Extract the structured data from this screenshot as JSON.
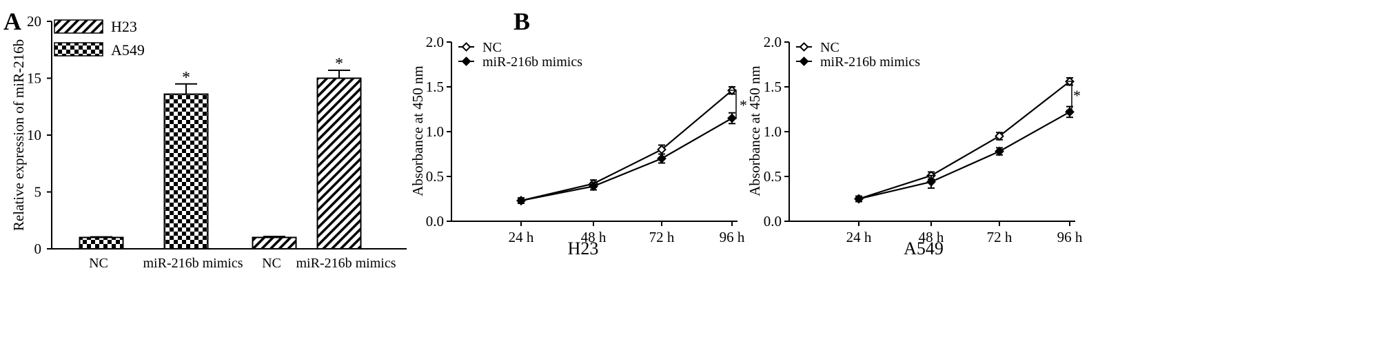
{
  "panel_labels": {
    "a": "A",
    "b": "B"
  },
  "chart_data": [
    {
      "type": "bar",
      "panel": "A",
      "ylabel": "Relative expression of miR-216b",
      "ylim": [
        0,
        20
      ],
      "yticks": [
        "0",
        "5",
        "10",
        "15",
        "20"
      ],
      "categories": [
        "NC",
        "miR-216b mimics",
        "NC",
        "miR-216b mimics"
      ],
      "groups": [
        {
          "cell_line": "A549",
          "pattern": "checkered",
          "bars": [
            {
              "category": "NC",
              "value": 1.0,
              "error": 0.05,
              "significant": false
            },
            {
              "category": "miR-216b mimics",
              "value": 13.6,
              "error": 0.9,
              "significant": true
            }
          ]
        },
        {
          "cell_line": "H23",
          "pattern": "hatched",
          "bars": [
            {
              "category": "NC",
              "value": 1.0,
              "error": 0.08,
              "significant": false
            },
            {
              "category": "miR-216b mimics",
              "value": 15.0,
              "error": 0.7,
              "significant": true
            }
          ]
        }
      ],
      "legend": [
        {
          "name": "H23",
          "pattern": "hatched"
        },
        {
          "name": "A549",
          "pattern": "checkered"
        }
      ],
      "legend_position": "top-left",
      "significance_symbol": "*"
    },
    {
      "type": "line",
      "panel": "B",
      "xlabel": "H23",
      "ylabel": "Absorbance at 450 nm",
      "categories": [
        "24 h",
        "48 h",
        "72 h",
        "96 h"
      ],
      "ylim": [
        0,
        2.0
      ],
      "yticks": [
        "0.0",
        "0.5",
        "1.0",
        "1.5",
        "2.0"
      ],
      "series": [
        {
          "name": "NC",
          "marker": "open-diamond",
          "values": [
            0.23,
            0.42,
            0.8,
            1.46
          ],
          "errors": [
            0.03,
            0.04,
            0.05,
            0.04
          ]
        },
        {
          "name": "miR-216b mimics",
          "marker": "filled-diamond",
          "values": [
            0.23,
            0.39,
            0.7,
            1.15
          ],
          "errors": [
            0.03,
            0.04,
            0.05,
            0.06
          ]
        }
      ],
      "legend_position": "top-left",
      "significance_symbol": "*"
    },
    {
      "type": "line",
      "panel": "B",
      "xlabel": "A549",
      "ylabel": "Absorbance at 450 nm",
      "categories": [
        "24 h",
        "48 h",
        "72 h",
        "96 h"
      ],
      "ylim": [
        0,
        2.0
      ],
      "yticks": [
        "0.0",
        "0.5",
        "1.0",
        "1.5",
        "2.0"
      ],
      "series": [
        {
          "name": "NC",
          "marker": "open-diamond",
          "values": [
            0.25,
            0.51,
            0.95,
            1.56
          ],
          "errors": [
            0.03,
            0.04,
            0.04,
            0.04
          ]
        },
        {
          "name": "miR-216b mimics",
          "marker": "filled-diamond",
          "values": [
            0.25,
            0.44,
            0.78,
            1.22
          ],
          "errors": [
            0.03,
            0.07,
            0.04,
            0.06
          ]
        }
      ],
      "legend_position": "top-left",
      "significance_symbol": "*"
    }
  ]
}
